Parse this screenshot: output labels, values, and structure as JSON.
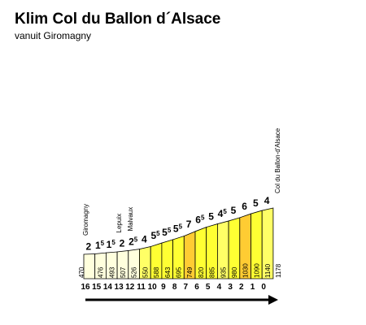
{
  "title": "Klim Col du Ballon d´Alsace",
  "subtitle": "vanuit Giromagny",
  "chart_data": {
    "type": "bar",
    "description_x": "km to summit",
    "km_labels": [
      "16",
      "15",
      "14",
      "13",
      "12",
      "11",
      "10",
      "9",
      "8",
      "7",
      "6",
      "5",
      "4",
      "3",
      "2",
      "1",
      "0"
    ],
    "altitudes": [
      470,
      476,
      493,
      507,
      526,
      550,
      588,
      643,
      695,
      749,
      820,
      885,
      935,
      980,
      1030,
      1090,
      1140,
      1178
    ],
    "gradients": [
      {
        "main": "2",
        "sub": ""
      },
      {
        "main": "1",
        "sub": "5"
      },
      {
        "main": "1",
        "sub": "5"
      },
      {
        "main": "2",
        "sub": ""
      },
      {
        "main": "2",
        "sub": "5"
      },
      {
        "main": "4",
        "sub": ""
      },
      {
        "main": "5",
        "sub": "5"
      },
      {
        "main": "5",
        "sub": "5"
      },
      {
        "main": "5",
        "sub": "5"
      },
      {
        "main": "7",
        "sub": ""
      },
      {
        "main": "6",
        "sub": "5"
      },
      {
        "main": "5",
        "sub": ""
      },
      {
        "main": "4",
        "sub": "5"
      },
      {
        "main": "5",
        "sub": ""
      },
      {
        "main": "6",
        "sub": ""
      },
      {
        "main": "5",
        "sub": ""
      },
      {
        "main": "4",
        "sub": ""
      }
    ],
    "segment_colors": [
      "#ffffdd",
      "#ffffdd",
      "#ffffdd",
      "#ffffdd",
      "#ffffdd",
      "#ffff66",
      "#ffff33",
      "#ffff33",
      "#ffff33",
      "#ffcc33",
      "#ffff33",
      "#ffff33",
      "#ffff66",
      "#ffff33",
      "#ffcc33",
      "#ffff33",
      "#ffff66"
    ],
    "places": [
      {
        "name": "Giromagny",
        "at_km_index": 0
      },
      {
        "name": "Lepuix",
        "at_km_index": 3
      },
      {
        "name": "Malvaux",
        "at_km_index": 4
      },
      {
        "name": "Col du Ballon-d'Alsace",
        "at_km_index": 16
      }
    ],
    "ylim": [
      470,
      1178
    ]
  }
}
